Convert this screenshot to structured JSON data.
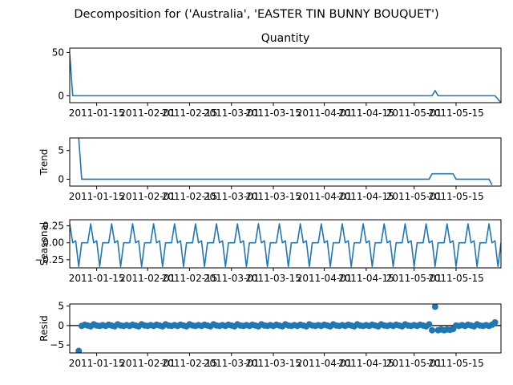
{
  "figure": {
    "suptitle": "Decomposition for ('Australia', 'EASTER TIN BUNNY BOUQUET')"
  },
  "colors": {
    "line": "#1f77b4",
    "axes": "#000000",
    "background": "#ffffff"
  },
  "chart_data": [
    {
      "type": "line",
      "title": "Quantity",
      "ylabel": "",
      "ylim": [
        -8,
        55
      ],
      "yticks": [
        0,
        50
      ],
      "x_range": [
        "2011-01-06",
        "2011-05-30"
      ],
      "xticks": [
        "2011-01-15",
        "2011-02-01",
        "2011-02-15",
        "2011-03-01",
        "2011-03-15",
        "2011-04-01",
        "2011-04-15",
        "2011-05-01",
        "2011-05-15"
      ],
      "series": [
        {
          "points": [
            [
              "2011-01-06",
              48
            ],
            [
              "2011-01-07",
              0
            ],
            [
              "2011-05-07",
              0
            ],
            [
              "2011-05-08",
              6
            ],
            [
              "2011-05-09",
              0
            ],
            [
              "2011-05-28",
              0
            ],
            [
              "2011-05-30",
              -8
            ]
          ]
        }
      ]
    },
    {
      "type": "line",
      "title": "",
      "ylabel": "Trend",
      "ylim": [
        -1.2,
        7.2
      ],
      "yticks": [
        0,
        5
      ],
      "x_range": [
        "2011-01-06",
        "2011-05-30"
      ],
      "xticks": [
        "2011-01-15",
        "2011-02-01",
        "2011-02-15",
        "2011-03-01",
        "2011-03-15",
        "2011-04-01",
        "2011-04-15",
        "2011-05-01",
        "2011-05-15"
      ],
      "series": [
        {
          "points": [
            [
              "2011-01-09",
              7.2
            ],
            [
              "2011-01-10",
              0
            ],
            [
              "2011-05-06",
              0
            ],
            [
              "2011-05-07",
              0.95
            ],
            [
              "2011-05-14",
              0.95
            ],
            [
              "2011-05-15",
              0
            ],
            [
              "2011-05-26",
              0
            ],
            [
              "2011-05-27",
              -1
            ]
          ]
        }
      ]
    },
    {
      "type": "line",
      "title": "",
      "ylabel": "Seasonal",
      "ylim": [
        -0.37,
        0.34
      ],
      "yticks": [
        0.25,
        0.0,
        -0.25
      ],
      "ytick_labels": [
        "0.25",
        "0.00",
        "−0.25"
      ],
      "x_range": [
        "2011-01-06",
        "2011-05-30"
      ],
      "xticks": [
        "2011-01-15",
        "2011-02-01",
        "2011-02-15",
        "2011-03-01",
        "2011-03-15",
        "2011-04-01",
        "2011-04-15",
        "2011-05-01",
        "2011-05-15"
      ],
      "series": [
        {
          "start": "2011-01-06",
          "period_values": [
            0.28,
            0.0,
            0.03,
            -0.35,
            0.0,
            0.0,
            0.0
          ],
          "count": 145
        }
      ]
    },
    {
      "type": "scatter",
      "title": "",
      "ylabel": "Resid",
      "ylim": [
        -7,
        5.5
      ],
      "yticks": [
        5,
        0,
        -5
      ],
      "ytick_labels": [
        "5",
        "0",
        "−5"
      ],
      "x_range": [
        "2011-01-06",
        "2011-05-30"
      ],
      "xticks": [
        "2011-01-15",
        "2011-02-01",
        "2011-02-15",
        "2011-03-01",
        "2011-03-15",
        "2011-04-01",
        "2011-04-15",
        "2011-05-01",
        "2011-05-15"
      ],
      "zero_line": true,
      "series": [
        {
          "x_start": "2011-01-09",
          "x_end": "2011-05-28",
          "baseline_values": [
            0.1,
            -0.1,
            0.2,
            0.0,
            -0.2,
            0.3,
            0.0,
            -0.1
          ],
          "outliers": [
            [
              "2011-01-09",
              -6.5
            ],
            [
              "2011-05-07",
              -1.2
            ],
            [
              "2011-05-08",
              4.8
            ],
            [
              "2011-05-09",
              -1.2
            ],
            [
              "2011-05-10",
              -1.0
            ],
            [
              "2011-05-11",
              -1.2
            ],
            [
              "2011-05-12",
              -1.0
            ],
            [
              "2011-05-13",
              -1.1
            ],
            [
              "2011-05-14",
              -0.9
            ],
            [
              "2011-05-27",
              0.2
            ],
            [
              "2011-05-28",
              0.8
            ]
          ]
        }
      ]
    }
  ]
}
